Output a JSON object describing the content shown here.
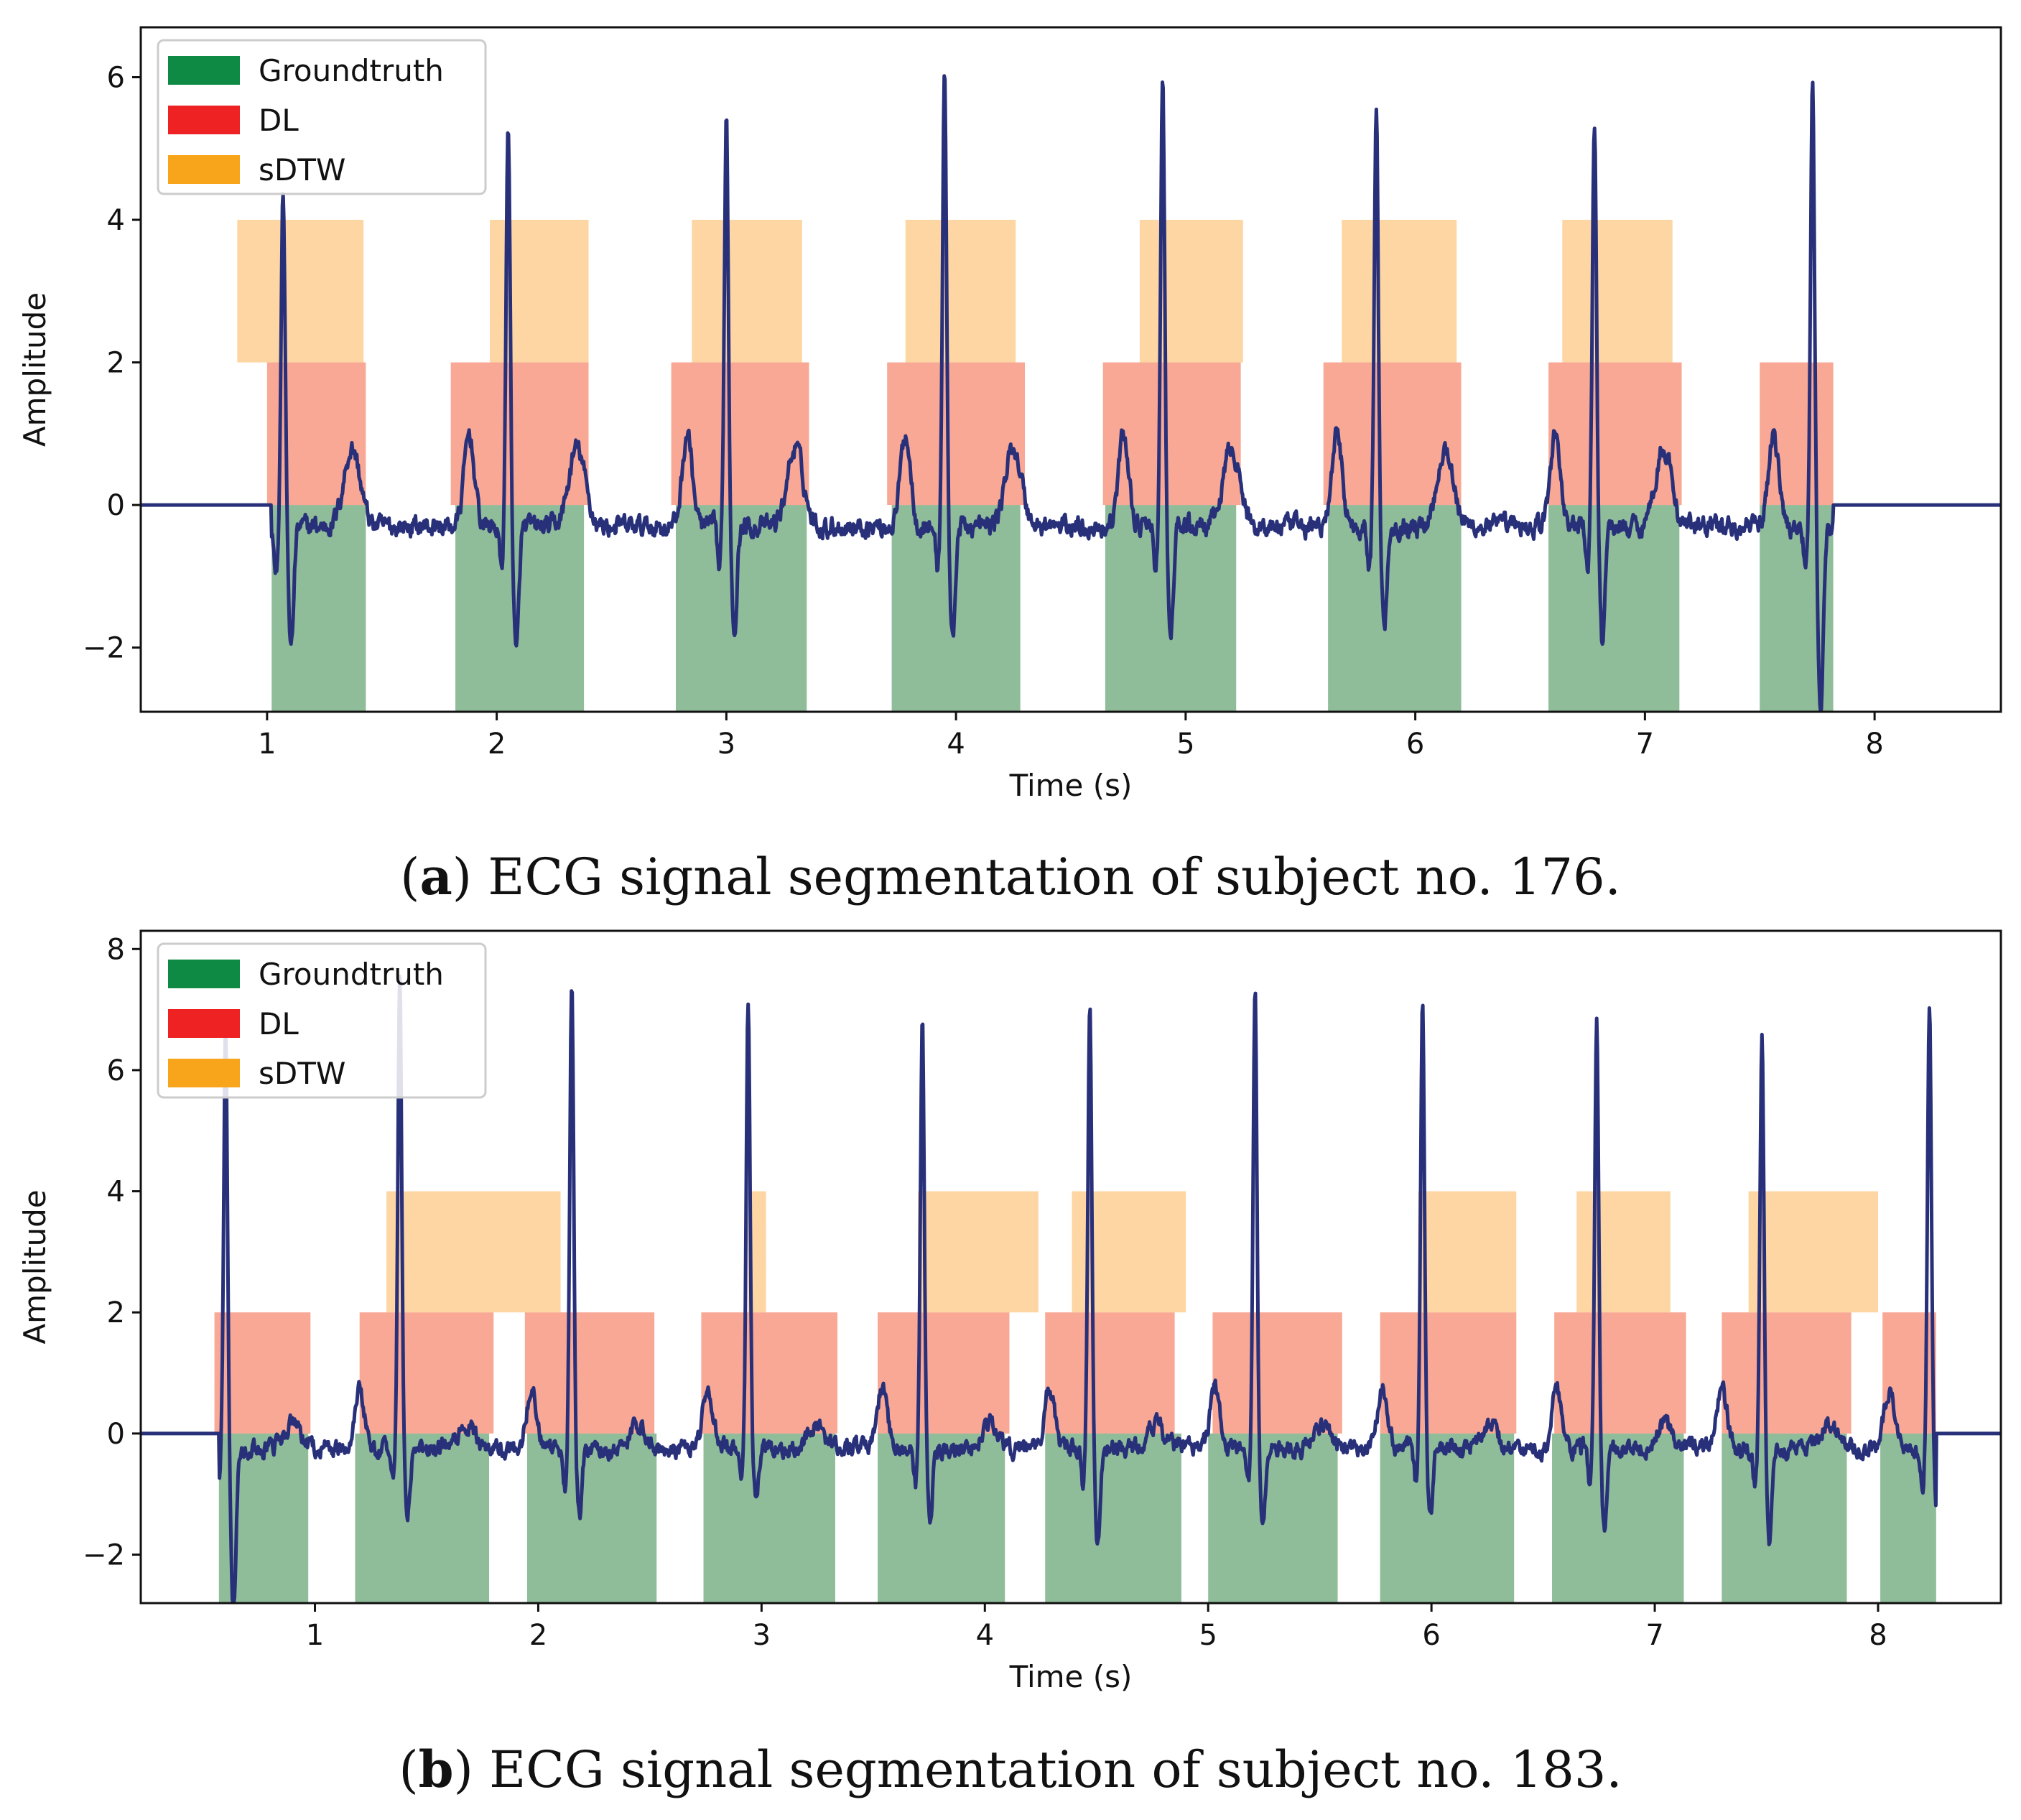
{
  "colors": {
    "groundtruth": "#0f8a44",
    "dl": "#ee2222",
    "sdtw": "#f8a51c",
    "signal": "#28307a",
    "axis": "#111111"
  },
  "chart_data": [
    {
      "type": "line",
      "panel_letter": "a",
      "caption": "ECG signal segmentation of subject no. 176.",
      "xlabel": "Time (s)",
      "ylabel": "Amplitude",
      "xlim": [
        0.45,
        8.55
      ],
      "ylim": [
        -2.9,
        6.7
      ],
      "xticks": [
        1,
        2,
        3,
        4,
        5,
        6,
        7,
        8
      ],
      "yticks": [
        -2,
        0,
        2,
        4,
        6
      ],
      "legend": {
        "position": "top-left",
        "entries": [
          {
            "key": "groundtruth",
            "label": "Groundtruth"
          },
          {
            "key": "dl",
            "label": "DL"
          },
          {
            "key": "sdtw",
            "label": "sDTW"
          }
        ]
      },
      "bands": {
        "groundtruth": {
          "y_range": [
            -2.9,
            0
          ],
          "intervals": [
            [
              1.02,
              1.43
            ],
            [
              1.82,
              2.38
            ],
            [
              2.78,
              3.35
            ],
            [
              3.72,
              4.28
            ],
            [
              4.65,
              5.22
            ],
            [
              5.62,
              6.2
            ],
            [
              6.58,
              7.15
            ],
            [
              7.5,
              7.82
            ]
          ]
        },
        "dl": {
          "y_range": [
            0,
            2
          ],
          "intervals": [
            [
              1.0,
              1.43
            ],
            [
              1.8,
              2.4
            ],
            [
              2.76,
              3.36
            ],
            [
              3.7,
              4.3
            ],
            [
              4.64,
              5.24
            ],
            [
              5.6,
              6.2
            ],
            [
              6.58,
              7.16
            ],
            [
              7.5,
              7.82
            ]
          ]
        },
        "sdtw": {
          "y_range": [
            2,
            4
          ],
          "intervals": [
            [
              0.87,
              1.42
            ],
            [
              1.97,
              2.4
            ],
            [
              2.85,
              3.33
            ],
            [
              3.78,
              4.26
            ],
            [
              4.8,
              5.25
            ],
            [
              5.68,
              6.18
            ],
            [
              6.64,
              7.12
            ]
          ]
        }
      },
      "signal": {
        "start": 0.45,
        "end": 8.55,
        "lead_in_end": 1.02,
        "lead_out_start": 7.82,
        "baseline": -0.3,
        "beats": [
          {
            "r": 1.07,
            "r_amp": 4.4,
            "s_amp": -1.9
          },
          {
            "r": 2.05,
            "r_amp": 5.4,
            "s_amp": -2.0
          },
          {
            "r": 3.0,
            "r_amp": 5.5,
            "s_amp": -1.6
          },
          {
            "r": 3.95,
            "r_amp": 6.1,
            "s_amp": -1.8
          },
          {
            "r": 4.9,
            "r_amp": 6.0,
            "s_amp": -1.8
          },
          {
            "r": 5.83,
            "r_amp": 5.7,
            "s_amp": -1.6
          },
          {
            "r": 6.78,
            "r_amp": 5.4,
            "s_amp": -1.8
          },
          {
            "r": 7.73,
            "r_amp": 5.9,
            "s_amp": -2.9
          }
        ],
        "p_amp": 1.3,
        "t_amp": 1.1,
        "p_offset": -0.17,
        "t_offset": 0.3
      }
    },
    {
      "type": "line",
      "panel_letter": "b",
      "caption": "ECG signal segmentation of subject no. 183.",
      "xlabel": "Time (s)",
      "ylabel": "Amplitude",
      "xlim": [
        0.22,
        8.55
      ],
      "ylim": [
        -2.8,
        8.3
      ],
      "xticks": [
        1,
        2,
        3,
        4,
        5,
        6,
        7,
        8
      ],
      "yticks": [
        -2,
        0,
        2,
        4,
        6,
        8
      ],
      "legend": {
        "position": "top-left",
        "entries": [
          {
            "key": "groundtruth",
            "label": "Groundtruth"
          },
          {
            "key": "dl",
            "label": "DL"
          },
          {
            "key": "sdtw",
            "label": "sDTW"
          }
        ]
      },
      "bands": {
        "groundtruth": {
          "y_range": [
            -2.8,
            0
          ],
          "intervals": [
            [
              0.57,
              0.97
            ],
            [
              1.18,
              1.78
            ],
            [
              1.95,
              2.53
            ],
            [
              2.74,
              3.33
            ],
            [
              3.52,
              4.09
            ],
            [
              4.27,
              4.88
            ],
            [
              5.0,
              5.58
            ],
            [
              5.77,
              6.37
            ],
            [
              6.54,
              7.13
            ],
            [
              7.3,
              7.86
            ],
            [
              8.01,
              8.26
            ]
          ]
        },
        "dl": {
          "y_range": [
            0,
            2
          ],
          "intervals": [
            [
              0.55,
              0.98
            ],
            [
              1.2,
              1.8
            ],
            [
              1.94,
              2.52
            ],
            [
              2.73,
              3.34
            ],
            [
              3.52,
              4.11
            ],
            [
              4.27,
              4.85
            ],
            [
              5.02,
              5.6
            ],
            [
              5.77,
              6.38
            ],
            [
              6.55,
              7.14
            ],
            [
              7.3,
              7.88
            ],
            [
              8.02,
              8.26
            ]
          ]
        },
        "sdtw": {
          "y_range": [
            2,
            4
          ],
          "intervals": [
            [
              1.32,
              2.1
            ],
            [
              2.94,
              3.02
            ],
            [
              3.7,
              4.24
            ],
            [
              4.39,
              4.9
            ],
            [
              5.94,
              6.38
            ],
            [
              6.65,
              7.07
            ],
            [
              7.42,
              8.0
            ]
          ]
        }
      },
      "signal": {
        "start": 0.22,
        "end": 8.55,
        "lead_in_end": 0.57,
        "lead_out_start": 8.26,
        "baseline": -0.25,
        "beats": [
          {
            "r": 0.6,
            "r_amp": 6.6,
            "s_amp": -2.8
          },
          {
            "r": 1.38,
            "r_amp": 7.5,
            "s_amp": -1.3
          },
          {
            "r": 2.15,
            "r_amp": 7.4,
            "s_amp": -1.3
          },
          {
            "r": 2.94,
            "r_amp": 7.1,
            "s_amp": -1.1
          },
          {
            "r": 3.72,
            "r_amp": 6.8,
            "s_amp": -1.3
          },
          {
            "r": 4.47,
            "r_amp": 7.0,
            "s_amp": -1.7
          },
          {
            "r": 5.21,
            "r_amp": 7.3,
            "s_amp": -1.5
          },
          {
            "r": 5.96,
            "r_amp": 7.1,
            "s_amp": -1.4
          },
          {
            "r": 6.74,
            "r_amp": 6.9,
            "s_amp": -1.6
          },
          {
            "r": 7.48,
            "r_amp": 6.5,
            "s_amp": -1.7
          },
          {
            "r": 8.23,
            "r_amp": 7.2,
            "s_amp": -1.2
          }
        ],
        "p_amp": 1.0,
        "t_amp": 0.4,
        "p_offset": -0.18,
        "t_offset": 0.3
      }
    }
  ]
}
